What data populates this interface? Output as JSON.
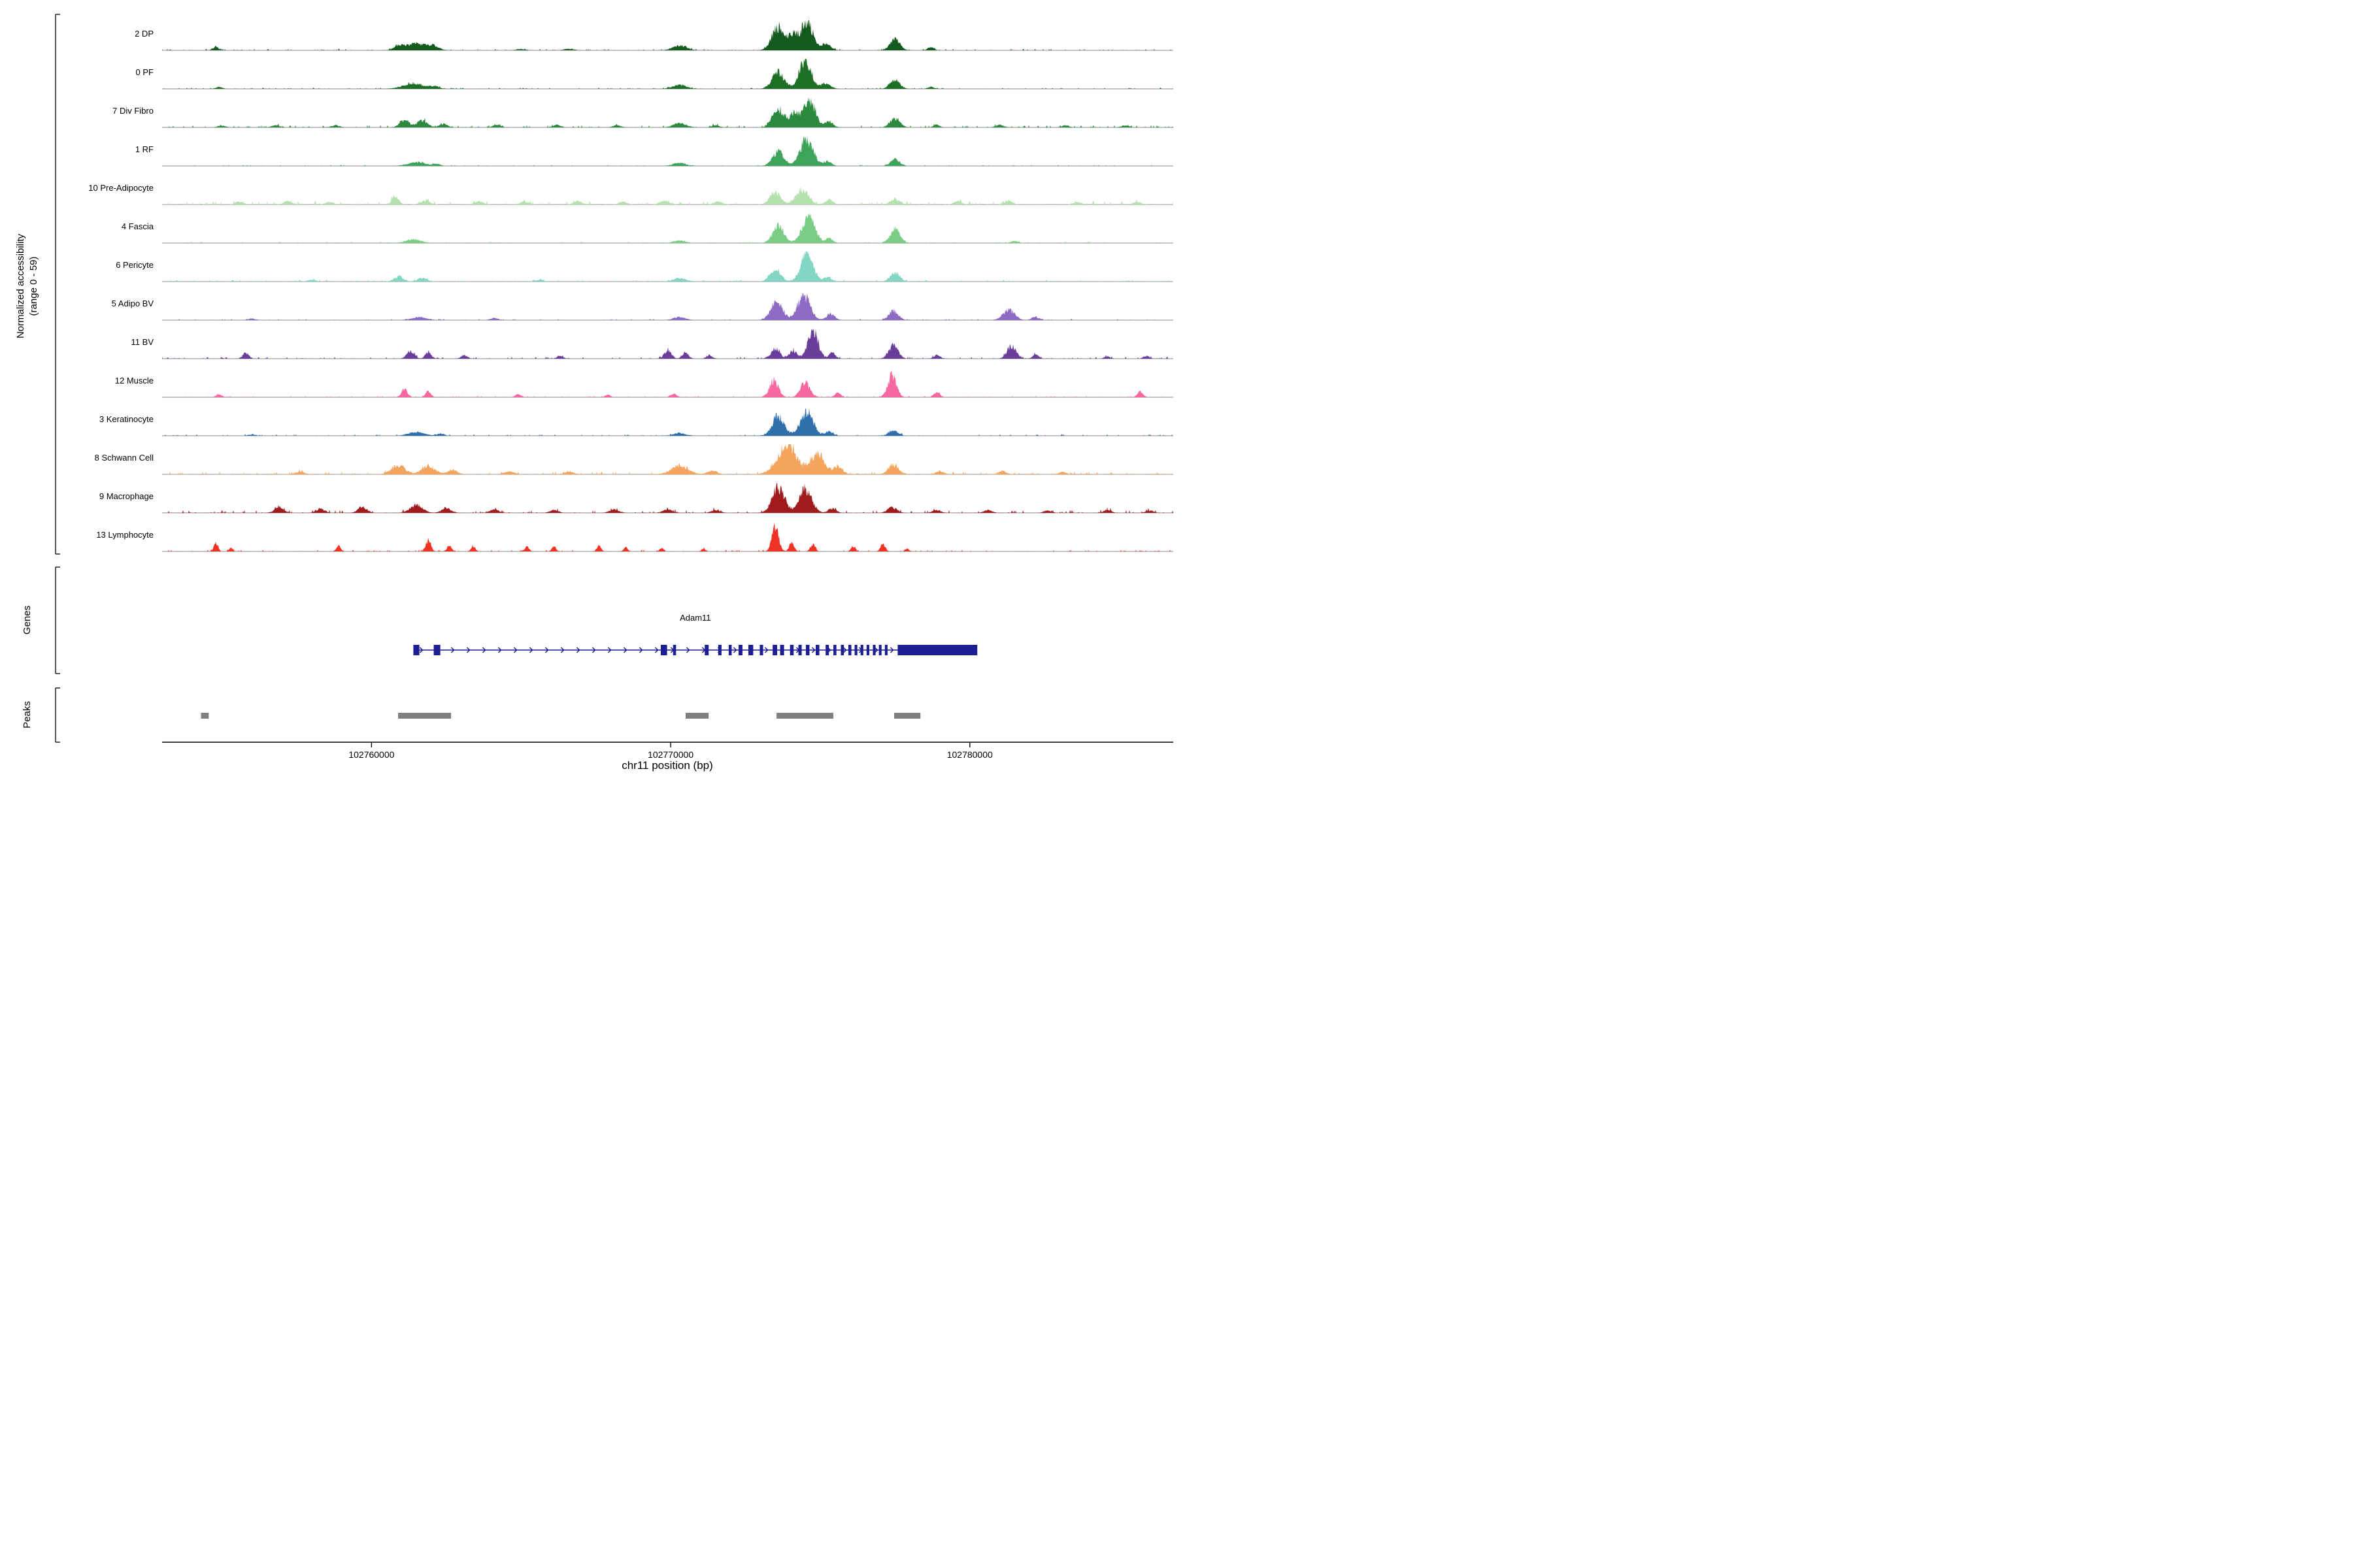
{
  "sections": {
    "genes": "Genes",
    "peaks": "Peaks"
  },
  "chart_data": {
    "type": "area",
    "xlabel": "chr11 position (bp)",
    "ylabel_line1": "Normalized accessibility",
    "ylabel_line2": "(range 0 - 59)",
    "x_range": [
      102753000,
      102786800
    ],
    "x_ticks": [
      102760000,
      102770000,
      102780000
    ],
    "track_y_range": [
      0,
      59
    ],
    "colors": {
      "gene": "#1d1d96",
      "peak": "#7f7f7f",
      "baseline": "#8c8c8c",
      "axis": "#000000"
    },
    "tracks": [
      {
        "label": "2 DP",
        "color": "#14591d",
        "noise": 0.03,
        "peaks": [
          [
            102754800,
            0.1,
            200
          ],
          [
            102760900,
            0.12,
            300
          ],
          [
            102761500,
            0.22,
            700
          ],
          [
            102762100,
            0.12,
            300
          ],
          [
            102765000,
            0.04,
            300
          ],
          [
            102766600,
            0.05,
            300
          ],
          [
            102770300,
            0.16,
            450
          ],
          [
            102773600,
            0.78,
            420
          ],
          [
            102774100,
            0.45,
            300
          ],
          [
            102774550,
            1.0,
            380
          ],
          [
            102775200,
            0.22,
            300
          ],
          [
            102777500,
            0.36,
            320
          ],
          [
            102778700,
            0.1,
            200
          ]
        ]
      },
      {
        "label": "0 PF",
        "color": "#1e6f26",
        "noise": 0.028,
        "peaks": [
          [
            102754900,
            0.07,
            200
          ],
          [
            102761400,
            0.17,
            700
          ],
          [
            102762100,
            0.08,
            300
          ],
          [
            102770300,
            0.13,
            450
          ],
          [
            102773600,
            0.55,
            400
          ],
          [
            102774500,
            0.95,
            400
          ],
          [
            102775200,
            0.18,
            300
          ],
          [
            102777500,
            0.3,
            320
          ],
          [
            102778700,
            0.07,
            200
          ]
        ]
      },
      {
        "label": "7 Div Fibro",
        "color": "#2c8a3e",
        "noise": 0.05,
        "peaks": [
          [
            102755000,
            0.06,
            250
          ],
          [
            102756800,
            0.07,
            250
          ],
          [
            102758800,
            0.07,
            250
          ],
          [
            102761100,
            0.26,
            300
          ],
          [
            102761700,
            0.22,
            350
          ],
          [
            102762400,
            0.12,
            250
          ],
          [
            102764200,
            0.09,
            250
          ],
          [
            102766200,
            0.08,
            250
          ],
          [
            102768200,
            0.07,
            250
          ],
          [
            102770300,
            0.14,
            400
          ],
          [
            102771500,
            0.07,
            250
          ],
          [
            102773600,
            0.62,
            380
          ],
          [
            102774150,
            0.48,
            300
          ],
          [
            102774650,
            0.88,
            380
          ],
          [
            102775300,
            0.2,
            250
          ],
          [
            102777500,
            0.3,
            320
          ],
          [
            102778900,
            0.08,
            200
          ],
          [
            102781000,
            0.08,
            250
          ],
          [
            102783200,
            0.06,
            250
          ],
          [
            102785200,
            0.06,
            250
          ]
        ]
      },
      {
        "label": "1 RF",
        "color": "#3fa45b",
        "noise": 0.025,
        "peaks": [
          [
            102761500,
            0.12,
            600
          ],
          [
            102762200,
            0.06,
            250
          ],
          [
            102770300,
            0.1,
            400
          ],
          [
            102773600,
            0.48,
            380
          ],
          [
            102774550,
            0.92,
            420
          ],
          [
            102775250,
            0.15,
            250
          ],
          [
            102777500,
            0.23,
            300
          ]
        ]
      },
      {
        "label": "10 Pre-Adipocyte",
        "color": "#b5e1ae",
        "noise": 0.075,
        "peaks": [
          [
            102755600,
            0.1,
            250
          ],
          [
            102757200,
            0.1,
            250
          ],
          [
            102758600,
            0.09,
            250
          ],
          [
            102760800,
            0.27,
            220
          ],
          [
            102761800,
            0.12,
            300
          ],
          [
            102763600,
            0.11,
            250
          ],
          [
            102765100,
            0.1,
            250
          ],
          [
            102766900,
            0.11,
            250
          ],
          [
            102768400,
            0.1,
            250
          ],
          [
            102769800,
            0.12,
            300
          ],
          [
            102771600,
            0.1,
            250
          ],
          [
            102773500,
            0.42,
            350
          ],
          [
            102774400,
            0.5,
            400
          ],
          [
            102775300,
            0.15,
            250
          ],
          [
            102777500,
            0.18,
            300
          ],
          [
            102779600,
            0.1,
            250
          ],
          [
            102781300,
            0.12,
            250
          ],
          [
            102783600,
            0.08,
            250
          ],
          [
            102785600,
            0.08,
            250
          ]
        ]
      },
      {
        "label": "4 Fascia",
        "color": "#7bcd85",
        "noise": 0.03,
        "peaks": [
          [
            102761400,
            0.12,
            500
          ],
          [
            102770300,
            0.08,
            400
          ],
          [
            102773600,
            0.55,
            380
          ],
          [
            102774600,
            0.88,
            420
          ],
          [
            102775300,
            0.15,
            250
          ],
          [
            102777500,
            0.45,
            330
          ],
          [
            102781500,
            0.06,
            250
          ]
        ]
      },
      {
        "label": "6 Pericyte",
        "color": "#82d6c3",
        "noise": 0.04,
        "peaks": [
          [
            102758000,
            0.06,
            250
          ],
          [
            102760900,
            0.16,
            300
          ],
          [
            102761700,
            0.12,
            300
          ],
          [
            102765600,
            0.06,
            250
          ],
          [
            102770300,
            0.11,
            400
          ],
          [
            102773500,
            0.42,
            350
          ],
          [
            102774550,
            0.92,
            400
          ],
          [
            102775250,
            0.15,
            250
          ],
          [
            102777500,
            0.28,
            320
          ]
        ]
      },
      {
        "label": "5 Adipo BV",
        "color": "#8d6ac4",
        "noise": 0.03,
        "peaks": [
          [
            102756000,
            0.05,
            250
          ],
          [
            102761600,
            0.1,
            500
          ],
          [
            102764100,
            0.07,
            250
          ],
          [
            102770300,
            0.1,
            400
          ],
          [
            102773550,
            0.58,
            400
          ],
          [
            102774450,
            0.82,
            420
          ],
          [
            102775350,
            0.2,
            280
          ],
          [
            102777450,
            0.3,
            320
          ],
          [
            102781300,
            0.33,
            380
          ],
          [
            102782200,
            0.1,
            250
          ]
        ]
      },
      {
        "label": "11 BV",
        "color": "#6a3d9a",
        "noise": 0.045,
        "peaks": [
          [
            102755800,
            0.2,
            200
          ],
          [
            102761300,
            0.26,
            240
          ],
          [
            102761900,
            0.2,
            200
          ],
          [
            102763100,
            0.12,
            200
          ],
          [
            102766300,
            0.08,
            200
          ],
          [
            102769900,
            0.26,
            240
          ],
          [
            102770500,
            0.22,
            200
          ],
          [
            102771300,
            0.1,
            200
          ],
          [
            102773500,
            0.32,
            300
          ],
          [
            102774100,
            0.25,
            250
          ],
          [
            102774750,
            1.0,
            330
          ],
          [
            102775400,
            0.18,
            220
          ],
          [
            102777450,
            0.46,
            300
          ],
          [
            102778900,
            0.13,
            200
          ],
          [
            102781400,
            0.42,
            300
          ],
          [
            102782200,
            0.13,
            200
          ],
          [
            102784600,
            0.07,
            200
          ],
          [
            102785900,
            0.09,
            200
          ]
        ]
      },
      {
        "label": "12 Muscle",
        "color": "#f768a1",
        "noise": 0.028,
        "peaks": [
          [
            102754900,
            0.1,
            180
          ],
          [
            102761100,
            0.26,
            200
          ],
          [
            102761900,
            0.18,
            180
          ],
          [
            102764900,
            0.1,
            180
          ],
          [
            102767900,
            0.07,
            180
          ],
          [
            102770100,
            0.11,
            200
          ],
          [
            102773450,
            0.55,
            300
          ],
          [
            102774500,
            0.48,
            320
          ],
          [
            102775600,
            0.14,
            200
          ],
          [
            102777400,
            0.72,
            280
          ],
          [
            102778900,
            0.18,
            200
          ],
          [
            102785700,
            0.18,
            180
          ]
        ]
      },
      {
        "label": "3 Keratinocyte",
        "color": "#2e6fac",
        "noise": 0.035,
        "peaks": [
          [
            102756000,
            0.04,
            250
          ],
          [
            102761500,
            0.13,
            500
          ],
          [
            102762300,
            0.07,
            250
          ],
          [
            102770300,
            0.09,
            400
          ],
          [
            102773600,
            0.66,
            400
          ],
          [
            102774550,
            0.78,
            420
          ],
          [
            102775300,
            0.14,
            250
          ],
          [
            102777450,
            0.18,
            300
          ]
        ]
      },
      {
        "label": "8 Schwann Cell",
        "color": "#f5a45d",
        "noise": 0.06,
        "peaks": [
          [
            102757600,
            0.08,
            300
          ],
          [
            102760900,
            0.3,
            450
          ],
          [
            102761900,
            0.26,
            450
          ],
          [
            102762700,
            0.15,
            300
          ],
          [
            102764600,
            0.1,
            300
          ],
          [
            102766600,
            0.08,
            300
          ],
          [
            102770300,
            0.28,
            550
          ],
          [
            102771400,
            0.12,
            300
          ],
          [
            102773900,
            1.0,
            650
          ],
          [
            102774900,
            0.7,
            450
          ],
          [
            102775600,
            0.25,
            300
          ],
          [
            102777450,
            0.33,
            330
          ],
          [
            102779000,
            0.1,
            250
          ],
          [
            102781100,
            0.09,
            250
          ],
          [
            102783100,
            0.07,
            250
          ]
        ]
      },
      {
        "label": "9 Macrophage",
        "color": "#a01c1c",
        "noise": 0.065,
        "peaks": [
          [
            102756900,
            0.16,
            300
          ],
          [
            102758300,
            0.13,
            280
          ],
          [
            102759700,
            0.2,
            280
          ],
          [
            102761500,
            0.26,
            400
          ],
          [
            102762500,
            0.16,
            300
          ],
          [
            102764100,
            0.11,
            280
          ],
          [
            102766100,
            0.09,
            280
          ],
          [
            102768100,
            0.11,
            280
          ],
          [
            102769900,
            0.11,
            300
          ],
          [
            102771500,
            0.09,
            280
          ],
          [
            102773600,
            0.85,
            400
          ],
          [
            102774500,
            0.78,
            420
          ],
          [
            102775400,
            0.15,
            250
          ],
          [
            102777400,
            0.18,
            300
          ],
          [
            102778900,
            0.09,
            250
          ],
          [
            102780600,
            0.09,
            250
          ],
          [
            102782600,
            0.07,
            250
          ],
          [
            102784600,
            0.09,
            250
          ],
          [
            102786000,
            0.07,
            250
          ]
        ]
      },
      {
        "label": "13 Lymphocyte",
        "color": "#ee3224",
        "noise": 0.035,
        "peaks": [
          [
            102754800,
            0.26,
            140
          ],
          [
            102755300,
            0.13,
            120
          ],
          [
            102758900,
            0.2,
            140
          ],
          [
            102761900,
            0.38,
            170
          ],
          [
            102762600,
            0.22,
            140
          ],
          [
            102763400,
            0.18,
            140
          ],
          [
            102765200,
            0.16,
            140
          ],
          [
            102766100,
            0.16,
            140
          ],
          [
            102767600,
            0.18,
            140
          ],
          [
            102768500,
            0.13,
            130
          ],
          [
            102769700,
            0.1,
            130
          ],
          [
            102771100,
            0.09,
            130
          ],
          [
            102773500,
            0.85,
            220
          ],
          [
            102774050,
            0.28,
            160
          ],
          [
            102774750,
            0.22,
            160
          ],
          [
            102776100,
            0.18,
            140
          ],
          [
            102777100,
            0.26,
            150
          ],
          [
            102777900,
            0.09,
            130
          ]
        ]
      }
    ],
    "gene_track": {
      "name": "Adam11",
      "strand": "+",
      "start": 102761400,
      "end": 102780250,
      "exons": [
        [
          102761400,
          102761600
        ],
        [
          102762080,
          102762300
        ],
        [
          102769670,
          102769880
        ],
        [
          102770080,
          102770180
        ],
        [
          102771140,
          102771270
        ],
        [
          102771590,
          102771700
        ],
        [
          102771940,
          102772040
        ],
        [
          102772270,
          102772400
        ],
        [
          102772600,
          102772760
        ],
        [
          102772980,
          102773090
        ],
        [
          102773410,
          102773560
        ],
        [
          102773660,
          102773790
        ],
        [
          102773990,
          102774110
        ],
        [
          102774270,
          102774380
        ],
        [
          102774520,
          102774640
        ],
        [
          102774850,
          102774970
        ],
        [
          102775180,
          102775290
        ],
        [
          102775440,
          102775540
        ],
        [
          102775690,
          102775790
        ],
        [
          102775940,
          102776040
        ],
        [
          102776150,
          102776240
        ],
        [
          102776350,
          102776440
        ],
        [
          102776550,
          102776640
        ],
        [
          102776760,
          102776850
        ],
        [
          102776960,
          102777050
        ],
        [
          102777160,
          102777250
        ],
        [
          102777590,
          102780250
        ]
      ]
    },
    "peak_regions": [
      [
        102754300,
        102754560
      ],
      [
        102760890,
        102762660
      ],
      [
        102770500,
        102771270
      ],
      [
        102773540,
        102775440
      ],
      [
        102777470,
        102778350
      ]
    ]
  }
}
